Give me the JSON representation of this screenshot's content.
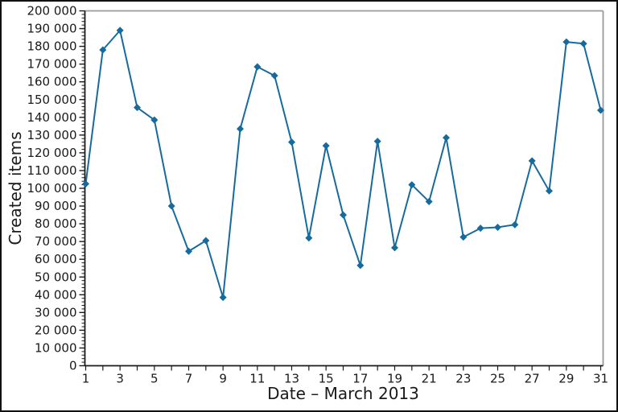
{
  "chart_data": {
    "type": "line",
    "title": "",
    "xlabel": "Date – March 2013",
    "ylabel": "Created items",
    "series_name": "Created items",
    "x": [
      1,
      2,
      3,
      4,
      5,
      6,
      7,
      8,
      9,
      10,
      11,
      12,
      13,
      14,
      15,
      16,
      17,
      18,
      19,
      20,
      21,
      22,
      23,
      24,
      25,
      26,
      27,
      28,
      29,
      30,
      31
    ],
    "values": [
      102500,
      178000,
      189000,
      145500,
      138500,
      90000,
      64500,
      70500,
      38500,
      133500,
      168500,
      163500,
      126000,
      72000,
      124000,
      85000,
      56500,
      126500,
      66500,
      102000,
      92500,
      128500,
      72500,
      77500,
      78000,
      79500,
      115500,
      98500,
      182500,
      181500,
      144000
    ],
    "xlim": [
      1,
      31
    ],
    "ylim": [
      0,
      200000
    ],
    "x_major_ticks": [
      1,
      3,
      5,
      7,
      9,
      11,
      13,
      15,
      17,
      19,
      21,
      23,
      25,
      27,
      29,
      31
    ],
    "x_tick_labels": [
      "1",
      "3",
      "5",
      "7",
      "9",
      "11",
      "13",
      "15",
      "17",
      "19",
      "21",
      "23",
      "25",
      "27",
      "29",
      "31"
    ],
    "x_minor_tick_step": 1,
    "y_major_tick_step": 10000,
    "y_minor_tick_step": 2000,
    "y_tick_labels": [
      "0",
      "10 000",
      "20 000",
      "30 000",
      "40 000",
      "50 000",
      "60 000",
      "70 000",
      "80 000",
      "90 000",
      "100 000",
      "110 000",
      "120 000",
      "130 000",
      "140 000",
      "150 000",
      "160 000",
      "170 000",
      "180 000",
      "190 000",
      "200 000"
    ],
    "grid": false,
    "legend": "none",
    "marker": "diamond",
    "colors": {
      "line": "#176b9c",
      "marker": "#176b9c",
      "axis": "#1a1a1a",
      "frame": "#9a9a9a",
      "text": "#1a1a1a",
      "background": "#ffffff"
    }
  }
}
